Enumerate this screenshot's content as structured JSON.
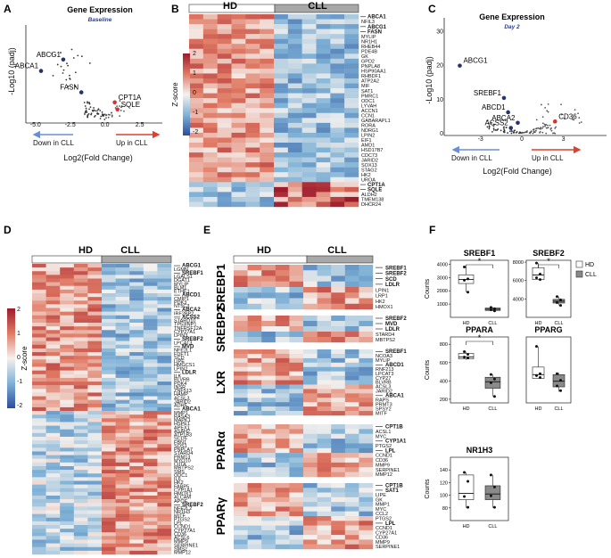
{
  "panels": {
    "A": "A",
    "B": "B",
    "C": "C",
    "D": "D",
    "E": "E",
    "F": "F"
  },
  "palette": {
    "low": "#2a4d9c",
    "mid": "#f5f1ee",
    "high": "#9e1b2c",
    "red_arrow": "#e0402e",
    "blue_arrow": "#6d8ed0"
  },
  "groups": {
    "hd": "HD",
    "cll": "CLL"
  },
  "heatmap_legend": {
    "title_b": "Z-score",
    "title_d": "Z-score",
    "ticks_b": [
      "2",
      "1",
      "0",
      "-1",
      "-2"
    ],
    "ticks_d": [
      "2",
      "1",
      "0",
      "-1",
      "-2"
    ]
  },
  "volcano": {
    "ylabel": "-Log10 (padj)",
    "xlabel": "Log2(Fold Change)",
    "down": "Down in CLL",
    "up": "Up in CLL"
  },
  "chart_data": [
    {
      "id": "A",
      "type": "scatter",
      "title": "Gene Expression",
      "subtitle": "Baseline",
      "xlabel": "Log2(Fold Change)",
      "ylabel": "-Log10 (padj)",
      "xlim": [
        -5.5,
        4
      ],
      "ylim": [
        0,
        6.5
      ],
      "xticks": [
        "-5.0",
        "-2.5",
        "0.0",
        "2.5"
      ],
      "labeled_points": [
        {
          "label": "ABCG1",
          "x": -3.0,
          "y": 4.2,
          "color": "#27336b"
        },
        {
          "label": "ABCA1",
          "x": -4.6,
          "y": 3.4,
          "color": "#27336b"
        },
        {
          "label": "FASN",
          "x": -1.7,
          "y": 1.9,
          "color": "#27336b"
        },
        {
          "label": "CPT1A",
          "x": 0.7,
          "y": 1.2,
          "color": "#d73030"
        },
        {
          "label": "SQLE",
          "x": 0.9,
          "y": 0.7,
          "color": "#d73030"
        }
      ]
    },
    {
      "id": "C",
      "type": "scatter",
      "title": "Gene Expression",
      "subtitle": "Day 2",
      "xlabel": "Log2(Fold Change)",
      "ylabel": "-Log10 (padj)",
      "xlim": [
        -5.5,
        6
      ],
      "ylim": [
        0,
        33
      ],
      "yticks": [
        "0",
        "10",
        "20",
        "30"
      ],
      "xticks": [
        "-3",
        "0",
        "3"
      ],
      "labeled_points": [
        {
          "label": "ABCG1",
          "x": -4.5,
          "y": 20,
          "color": "#27336b"
        },
        {
          "label": "SREBF1",
          "x": -1.3,
          "y": 10.5,
          "color": "#27336b"
        },
        {
          "label": "ABCD1",
          "x": -1.0,
          "y": 6.3,
          "color": "#27336b"
        },
        {
          "label": "ABCA2",
          "x": -0.3,
          "y": 3.2,
          "color": "#27336b"
        },
        {
          "label": "ACSS2",
          "x": -0.8,
          "y": 1.7,
          "color": "#27336b"
        },
        {
          "label": "CD36",
          "x": 2.4,
          "y": 3.6,
          "color": "#d73030"
        }
      ]
    },
    {
      "id": "F1",
      "type": "box",
      "title": "SREBF1",
      "ylabel": "Counts",
      "categories": [
        "HD",
        "CLL"
      ],
      "ylim": [
        0,
        4300
      ],
      "yticks": [
        "1000",
        "2000",
        "3000",
        "4000"
      ],
      "significance": "*",
      "boxes": [
        {
          "name": "HD",
          "q1": 2550,
          "median": 2850,
          "q3": 3200,
          "min": 1900,
          "max": 3800,
          "points": [
            3800,
            2900,
            2800,
            1900
          ]
        },
        {
          "name": "CLL",
          "q1": 520,
          "median": 610,
          "q3": 700,
          "min": 480,
          "max": 760,
          "points": [
            750,
            650,
            560,
            490
          ]
        }
      ]
    },
    {
      "id": "F2",
      "type": "box",
      "title": "SREBF2",
      "ylabel": "",
      "categories": [
        "HD",
        "CLL"
      ],
      "ylim": [
        2000,
        8200
      ],
      "yticks": [
        "4000",
        "6000",
        "8000"
      ],
      "significance": "*",
      "boxes": [
        {
          "name": "HD",
          "q1": 6100,
          "median": 6600,
          "q3": 7400,
          "min": 6100,
          "max": 7900,
          "points": [
            7900,
            6700,
            6300,
            6100
          ]
        },
        {
          "name": "CLL",
          "q1": 3550,
          "median": 3750,
          "q3": 3950,
          "min": 3300,
          "max": 4250,
          "points": [
            4250,
            3900,
            3600,
            3300
          ]
        }
      ]
    },
    {
      "id": "F3",
      "type": "box",
      "title": "PPARA",
      "ylabel": "Counts",
      "categories": [
        "HD",
        "CLL"
      ],
      "ylim": [
        160,
        880
      ],
      "yticks": [
        "200",
        "400",
        "600",
        "800"
      ],
      "significance": "*",
      "boxes": [
        {
          "name": "HD",
          "q1": 640,
          "median": 660,
          "q3": 700,
          "min": 630,
          "max": 720,
          "points": [
            720,
            690,
            660,
            650
          ]
        },
        {
          "name": "CLL",
          "q1": 320,
          "median": 390,
          "q3": 440,
          "min": 230,
          "max": 470,
          "points": [
            470,
            420,
            380,
            230
          ]
        }
      ]
    },
    {
      "id": "F4",
      "type": "box",
      "title": "PPARG",
      "ylabel": "",
      "categories": [
        "HD",
        "CLL"
      ],
      "ylim": [
        0,
        70
      ],
      "yticks": [],
      "significance": "",
      "boxes": [
        {
          "name": "HD",
          "q1": 26,
          "median": 30,
          "q3": 38,
          "min": 26,
          "max": 60,
          "points": [
            60,
            31,
            29,
            27
          ]
        },
        {
          "name": "CLL",
          "q1": 17,
          "median": 23,
          "q3": 30,
          "min": 12,
          "max": 32,
          "points": [
            31,
            24,
            18,
            13
          ]
        }
      ]
    },
    {
      "id": "F5",
      "type": "box",
      "title": "NR1H3",
      "ylabel": "Counts",
      "categories": [
        "HD",
        "CLL"
      ],
      "ylim": [
        60,
        160
      ],
      "yticks": [
        "80",
        "100",
        "120",
        "140"
      ],
      "significance": "",
      "boxes": [
        {
          "name": "HD",
          "q1": 93,
          "median": 103,
          "q3": 132,
          "min": 80,
          "max": 136,
          "points": [
            136,
            122,
            98,
            81
          ]
        },
        {
          "name": "CLL",
          "q1": 93,
          "median": 102,
          "q3": 115,
          "min": 80,
          "max": 132,
          "points": [
            132,
            113,
            99,
            81
          ]
        }
      ]
    }
  ],
  "heatmap_B": {
    "labels": [
      "ABCA1",
      "NFIL3",
      "ABCG1",
      "FASN",
      "MYLIP",
      "NR1H1",
      "RHEB44",
      "PDE4B",
      "GK",
      "GPD2",
      "PNPLA8",
      "HSP90AA1",
      "RHBDF1",
      "ATP2A2",
      "MIF",
      "SAT1",
      "PMRC1",
      "ODC1",
      "LYVAH",
      "ACCN1",
      "CCN1",
      "GABARAPL1",
      "RORA",
      "NDRG1",
      "LPIN2",
      "EIF1",
      "AMD1",
      "HSD17B7",
      "CDC73",
      "JARID2",
      "SOX13",
      "STAG2",
      "HK2",
      "UROA",
      "CPT1A",
      "SQLE",
      "ALDH2",
      "TMEM138",
      "DHCR24"
    ],
    "bold": [
      "ABCA1",
      "ABCG1",
      "FASN",
      "CPT1A",
      "SQLE"
    ]
  },
  "heatmap_D": {
    "labels": [
      "ABCG1",
      "LGMN",
      "SREBF1",
      "LGALS1",
      "DGAT1",
      "MYLIP",
      "BLM1",
      "ETHE1",
      "ABCD1",
      "CMIP1",
      "PDK3",
      "NT5C3",
      "ABCA2",
      "IRF2BP2",
      "ACSS2",
      "STARD10",
      "TP53INP1",
      "TNFRSF12A",
      "CYP27A1",
      "LPIN3",
      "SREBF2",
      "LPCAT3",
      "MVD",
      "NFE2L1",
      "FDFT1",
      "SCD",
      "LIPE",
      "HMGCS1",
      "LPIN2",
      "LDLR",
      "ILK",
      "BLVRB",
      "PDK4",
      "INSR",
      "ZNF513",
      "HAMP",
      "ACSL3",
      "JARID2",
      "ADH5",
      "ABCA1",
      "MMP1",
      "RASA3",
      "MAPK1",
      "HSPE1",
      "APEX1",
      "ASAH2",
      "ATP1B3",
      "SCD5",
      "FBN1",
      "SOS1",
      "PNPLA7",
      "STARD4",
      "PRM13",
      "MYO10",
      "CIITA",
      "MBTPS2",
      "SMS",
      "ODC1",
      "IL6",
      "HK2",
      "FABP5",
      "CYP1A1",
      "HMOX1",
      "ALCAM",
      "APOE",
      "SREBF2",
      "NFE2L2",
      "NR1H3",
      "MITF",
      "PTGS2",
      "LPL",
      "CCND1",
      "CYP27A1",
      "CD36",
      "ACSL6",
      "MMP9",
      "SERPINE1",
      "SMS2",
      "MMP12"
    ],
    "bold": [
      "ABCG1",
      "SREBF1",
      "ABCD1",
      "ABCA2",
      "ACSS2",
      "SREBF2",
      "MVD",
      "LDLR",
      "ABCA1"
    ]
  },
  "heatmap_E": {
    "sections": [
      {
        "title": "SREBP1",
        "labels": [
          "SREBF1",
          "SREBF2",
          "SCD",
          "LDLR",
          "LPIN1",
          "LRP1",
          "HK2",
          "HMOX1"
        ],
        "bold": [
          "SREBF1",
          "SREBF2",
          "SCD",
          "LDLR"
        ]
      },
      {
        "title": "SREBP2",
        "labels": [
          "SREBF2",
          "MVD",
          "LDLR",
          "STARD4",
          "MBTPS2"
        ],
        "bold": [
          "SREBF2",
          "MVD",
          "LDLR"
        ]
      },
      {
        "title": "LXR",
        "labels": [
          "SREBF1",
          "NCOA3",
          "MYLIP",
          "ABCD1",
          "RNF213",
          "LPCAT3",
          "CYP27",
          "BLVRB",
          "ACSL3",
          "JARID2",
          "ABCA1",
          "RAPS",
          "PRMT3",
          "SPSY2",
          "MITF"
        ],
        "bold": [
          "SREBF1",
          "ABCD1",
          "ABCA1"
        ]
      },
      {
        "title": "PPARα",
        "labels": [
          "CPT1B",
          "ACSL1",
          "MYC",
          "CYP1A1",
          "PTGS2",
          "LPL",
          "CCND1",
          "CD36",
          "MMP9",
          "SERPINE1",
          "MMP12"
        ],
        "bold": [
          "CPT1B",
          "CYP1A1",
          "LPL"
        ]
      },
      {
        "title": "PPARγ",
        "labels": [
          "CPT1B",
          "SAT1",
          "LIPE",
          "GK",
          "MMP1",
          "MYC",
          "CCL2",
          "PTGS2",
          "LPL",
          "CCND1",
          "CYP27A1",
          "CD36",
          "MMP9",
          "SERPINE1"
        ],
        "bold": [
          "CPT1B",
          "SAT1",
          "LPL"
        ]
      }
    ]
  }
}
